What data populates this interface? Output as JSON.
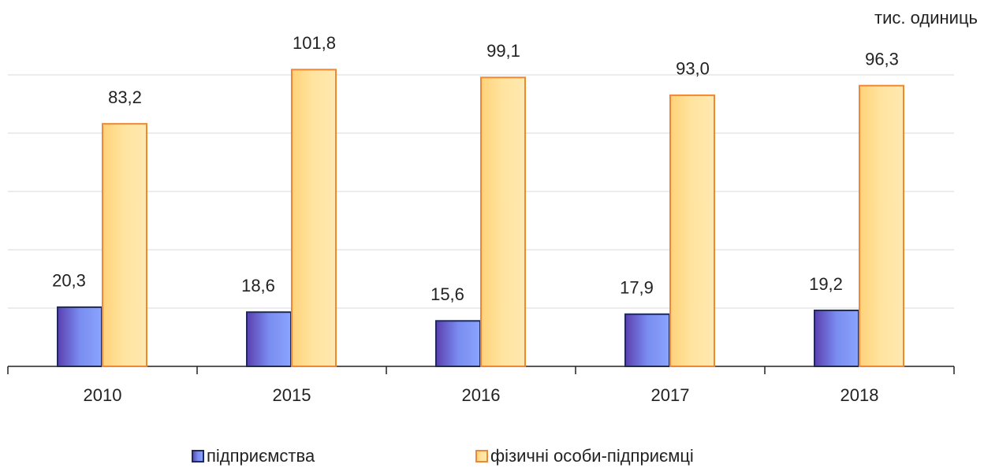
{
  "chart_data": {
    "type": "bar",
    "unit_label": "тис. одиниць",
    "categories": [
      "2010",
      "2015",
      "2016",
      "2017",
      "2018"
    ],
    "series": [
      {
        "name": "підприємства",
        "color": "#7383e8",
        "values": [
          20.3,
          18.6,
          15.6,
          17.9,
          19.2
        ],
        "value_labels": [
          "20,3",
          "18,6",
          "15,6",
          "17,9",
          "19,2"
        ]
      },
      {
        "name": "фізичні особи-підприємці",
        "color": "#ffdc8a",
        "values": [
          83.2,
          101.8,
          99.1,
          93.0,
          96.3
        ],
        "value_labels": [
          "83,2",
          "101,8",
          "99,1",
          "93,0",
          "96,3"
        ]
      }
    ],
    "ylim": [
      0,
      110
    ],
    "yticks": [
      0,
      20,
      40,
      60,
      80,
      100
    ],
    "grid": true,
    "legend": "bottom"
  }
}
